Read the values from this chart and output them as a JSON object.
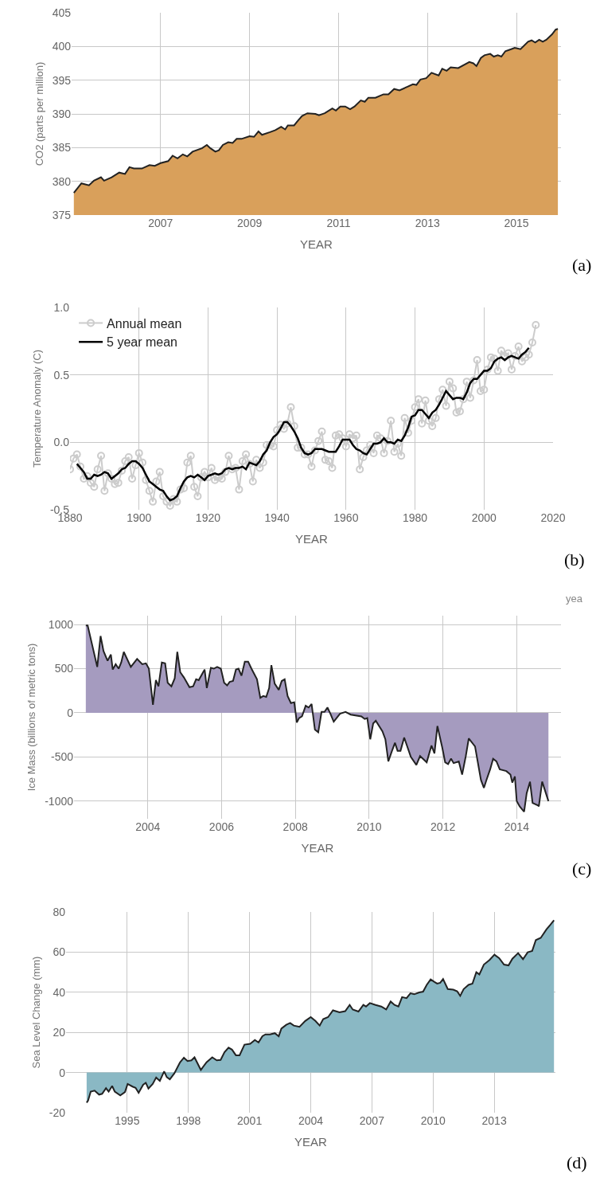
{
  "chart_data": [
    {
      "type": "area",
      "xlabel": "YEAR",
      "ylabel": "CO2 (parts per million)",
      "annotations": [
        "(a)"
      ],
      "xlim": [
        2005,
        2016
      ],
      "xticks": [
        2007,
        2009,
        2011,
        2013,
        2015
      ],
      "ylim": [
        375,
        405
      ],
      "yticks": [
        375,
        380,
        385,
        390,
        395,
        400,
        405
      ],
      "grid": true,
      "x": [
        2005.05,
        2005.22,
        2005.39,
        2005.5,
        2005.66,
        2005.73,
        2005.9,
        2006.07,
        2006.2,
        2006.3,
        2006.4,
        2006.58,
        2006.75,
        2006.87,
        2007.0,
        2007.17,
        2007.27,
        2007.38,
        2007.5,
        2007.6,
        2007.72,
        2007.93,
        2008.04,
        2008.12,
        2008.23,
        2008.31,
        2008.4,
        2008.52,
        2008.62,
        2008.71,
        2008.82,
        2009.0,
        2009.1,
        2009.2,
        2009.28,
        2009.46,
        2009.58,
        2009.71,
        2009.8,
        2009.86,
        2010.0,
        2010.1,
        2010.18,
        2010.3,
        2010.48,
        2010.56,
        2010.69,
        2010.86,
        2010.94,
        2011.04,
        2011.15,
        2011.26,
        2011.36,
        2011.5,
        2011.59,
        2011.67,
        2011.83,
        2012.01,
        2012.12,
        2012.25,
        2012.37,
        2012.54,
        2012.67,
        2012.75,
        2012.84,
        2012.97,
        2013.09,
        2013.25,
        2013.33,
        2013.43,
        2013.52,
        2013.69,
        2013.94,
        2014.03,
        2014.1,
        2014.2,
        2014.28,
        2014.41,
        2014.49,
        2014.58,
        2014.66,
        2014.75,
        2014.88,
        2014.96,
        2015.09,
        2015.26,
        2015.34,
        2015.42,
        2015.51,
        2015.59,
        2015.67,
        2015.8,
        2015.88,
        2015.93
      ],
      "series": [
        {
          "color": "#d9a05b",
          "values": [
            378.3,
            379.7,
            379.4,
            380.1,
            380.6,
            380.1,
            380.6,
            381.3,
            381.1,
            382.1,
            381.9,
            381.9,
            382.4,
            382.3,
            382.7,
            383.0,
            383.8,
            383.4,
            384.0,
            383.7,
            384.4,
            384.9,
            385.4,
            384.9,
            384.4,
            384.6,
            385.4,
            385.8,
            385.7,
            386.3,
            386.3,
            386.7,
            386.6,
            387.4,
            386.9,
            387.3,
            387.6,
            388.1,
            387.7,
            388.3,
            388.3,
            389.1,
            389.7,
            390.1,
            390.0,
            389.8,
            390.1,
            390.8,
            390.5,
            391.1,
            391.1,
            390.7,
            391.1,
            392.0,
            391.8,
            392.4,
            392.4,
            392.9,
            392.9,
            393.7,
            393.5,
            394.0,
            394.4,
            394.3,
            395.1,
            395.3,
            396.1,
            395.7,
            396.7,
            396.4,
            396.9,
            396.8,
            397.7,
            397.5,
            397.1,
            398.3,
            398.7,
            398.9,
            398.5,
            398.7,
            398.5,
            399.3,
            399.6,
            399.8,
            399.6,
            400.7,
            400.9,
            400.6,
            401.0,
            400.7,
            401.0,
            401.8,
            402.5,
            402.6
          ]
        }
      ]
    },
    {
      "type": "line",
      "xlabel": "YEAR",
      "ylabel": "Temperature Anomaly (C)",
      "annotations": [
        "(b)"
      ],
      "xlim": [
        1880,
        2020
      ],
      "xticks": [
        1880,
        1900,
        1920,
        1940,
        1960,
        1980,
        2000,
        2020
      ],
      "ylim": [
        -0.5,
        1.0
      ],
      "yticks": [
        {
          "value": -0.5,
          "label": "-0.5"
        },
        {
          "value": 0,
          "label": "0.0"
        },
        {
          "value": 0.5,
          "label": "0.5"
        },
        {
          "value": 1,
          "label": "1.0"
        }
      ],
      "grid": true,
      "legend": "top left",
      "series": [
        {
          "name": "Annual mean",
          "color": "#cccccc",
          "marker": "circle",
          "x": [
            1880,
            1881,
            1882,
            1883,
            1884,
            1885,
            1886,
            1887,
            1888,
            1889,
            1890,
            1891,
            1892,
            1893,
            1894,
            1895,
            1896,
            1897,
            1898,
            1899,
            1900,
            1901,
            1902,
            1903,
            1904,
            1905,
            1906,
            1907,
            1908,
            1909,
            1910,
            1911,
            1912,
            1913,
            1914,
            1915,
            1916,
            1917,
            1918,
            1919,
            1920,
            1921,
            1922,
            1923,
            1924,
            1925,
            1926,
            1927,
            1928,
            1929,
            1930,
            1931,
            1932,
            1933,
            1934,
            1935,
            1936,
            1937,
            1938,
            1939,
            1940,
            1941,
            1942,
            1943,
            1944,
            1945,
            1946,
            1947,
            1948,
            1949,
            1950,
            1951,
            1952,
            1953,
            1954,
            1955,
            1956,
            1957,
            1958,
            1959,
            1960,
            1961,
            1962,
            1963,
            1964,
            1965,
            1966,
            1967,
            1968,
            1969,
            1970,
            1971,
            1972,
            1973,
            1974,
            1975,
            1976,
            1977,
            1978,
            1979,
            1980,
            1981,
            1982,
            1983,
            1984,
            1985,
            1986,
            1987,
            1988,
            1989,
            1990,
            1991,
            1992,
            1993,
            1994,
            1995,
            1996,
            1997,
            1998,
            1999,
            2000,
            2001,
            2002,
            2003,
            2004,
            2005,
            2006,
            2007,
            2008,
            2009,
            2010,
            2011,
            2012,
            2013,
            2014,
            2015
          ],
          "values": [
            -0.2,
            -0.12,
            -0.09,
            -0.18,
            -0.27,
            -0.25,
            -0.3,
            -0.33,
            -0.2,
            -0.1,
            -0.36,
            -0.23,
            -0.27,
            -0.31,
            -0.3,
            -0.21,
            -0.14,
            -0.11,
            -0.27,
            -0.17,
            -0.08,
            -0.15,
            -0.28,
            -0.36,
            -0.44,
            -0.29,
            -0.22,
            -0.4,
            -0.44,
            -0.47,
            -0.42,
            -0.44,
            -0.35,
            -0.34,
            -0.15,
            -0.1,
            -0.33,
            -0.4,
            -0.26,
            -0.22,
            -0.26,
            -0.19,
            -0.28,
            -0.26,
            -0.27,
            -0.22,
            -0.1,
            -0.2,
            -0.19,
            -0.35,
            -0.14,
            -0.09,
            -0.16,
            -0.29,
            -0.13,
            -0.19,
            -0.15,
            -0.02,
            -0.02,
            -0.03,
            0.09,
            0.13,
            0.1,
            0.14,
            0.26,
            0.12,
            -0.04,
            -0.04,
            -0.09,
            -0.09,
            -0.18,
            -0.06,
            0.01,
            0.08,
            -0.13,
            -0.14,
            -0.19,
            0.05,
            0.06,
            0.03,
            -0.03,
            0.06,
            0.03,
            0.05,
            -0.2,
            -0.11,
            -0.06,
            -0.02,
            -0.08,
            0.05,
            0.03,
            -0.08,
            0.01,
            0.16,
            -0.07,
            -0.01,
            -0.1,
            0.18,
            0.07,
            0.16,
            0.26,
            0.32,
            0.14,
            0.31,
            0.16,
            0.12,
            0.18,
            0.32,
            0.39,
            0.27,
            0.45,
            0.4,
            0.22,
            0.23,
            0.32,
            0.45,
            0.33,
            0.46,
            0.61,
            0.38,
            0.39,
            0.54,
            0.63,
            0.62,
            0.53,
            0.68,
            0.64,
            0.66,
            0.54,
            0.64,
            0.71,
            0.6,
            0.63,
            0.65,
            0.74,
            0.87
          ]
        },
        {
          "name": "5 year mean",
          "color": "#000000",
          "marker": "none",
          "x": [
            1882,
            1883,
            1884,
            1885,
            1886,
            1887,
            1888,
            1889,
            1890,
            1891,
            1892,
            1893,
            1894,
            1895,
            1896,
            1897,
            1898,
            1899,
            1900,
            1901,
            1902,
            1903,
            1904,
            1905,
            1906,
            1907,
            1908,
            1909,
            1910,
            1911,
            1912,
            1913,
            1914,
            1915,
            1916,
            1917,
            1918,
            1919,
            1920,
            1921,
            1922,
            1923,
            1924,
            1925,
            1926,
            1927,
            1928,
            1929,
            1930,
            1931,
            1932,
            1933,
            1934,
            1935,
            1936,
            1937,
            1938,
            1939,
            1940,
            1941,
            1942,
            1943,
            1944,
            1945,
            1946,
            1947,
            1948,
            1949,
            1950,
            1951,
            1952,
            1953,
            1954,
            1955,
            1956,
            1957,
            1958,
            1959,
            1960,
            1961,
            1962,
            1963,
            1964,
            1965,
            1966,
            1967,
            1968,
            1969,
            1970,
            1971,
            1972,
            1973,
            1974,
            1975,
            1976,
            1977,
            1978,
            1979,
            1980,
            1981,
            1982,
            1983,
            1984,
            1985,
            1986,
            1987,
            1988,
            1989,
            1990,
            1991,
            1992,
            1993,
            1994,
            1995,
            1996,
            1997,
            1998,
            1999,
            2000,
            2001,
            2002,
            2003,
            2004,
            2005,
            2006,
            2007,
            2008,
            2009,
            2010,
            2011,
            2012,
            2013
          ],
          "values": [
            -0.16,
            -0.19,
            -0.22,
            -0.27,
            -0.27,
            -0.24,
            -0.25,
            -0.24,
            -0.22,
            -0.23,
            -0.27,
            -0.25,
            -0.23,
            -0.2,
            -0.19,
            -0.16,
            -0.14,
            -0.14,
            -0.16,
            -0.19,
            -0.24,
            -0.29,
            -0.31,
            -0.33,
            -0.35,
            -0.36,
            -0.4,
            -0.43,
            -0.42,
            -0.4,
            -0.34,
            -0.29,
            -0.26,
            -0.25,
            -0.26,
            -0.24,
            -0.26,
            -0.28,
            -0.25,
            -0.24,
            -0.23,
            -0.24,
            -0.23,
            -0.2,
            -0.19,
            -0.2,
            -0.19,
            -0.19,
            -0.18,
            -0.2,
            -0.15,
            -0.16,
            -0.17,
            -0.14,
            -0.09,
            -0.06,
            0.0,
            0.04,
            0.06,
            0.1,
            0.15,
            0.15,
            0.12,
            0.08,
            0.03,
            -0.04,
            -0.08,
            -0.09,
            -0.08,
            -0.05,
            -0.05,
            -0.05,
            -0.06,
            -0.07,
            -0.07,
            -0.07,
            -0.03,
            0.02,
            0.02,
            0.02,
            -0.02,
            -0.05,
            -0.06,
            -0.08,
            -0.09,
            -0.05,
            -0.01,
            -0.01,
            0.0,
            0.03,
            0.0,
            0.0,
            -0.01,
            0.02,
            0.01,
            0.05,
            0.11,
            0.19,
            0.2,
            0.24,
            0.24,
            0.21,
            0.18,
            0.22,
            0.24,
            0.28,
            0.33,
            0.38,
            0.35,
            0.32,
            0.33,
            0.33,
            0.32,
            0.37,
            0.44,
            0.47,
            0.47,
            0.5,
            0.53,
            0.53,
            0.55,
            0.6,
            0.62,
            0.63,
            0.61,
            0.63,
            0.64,
            0.63,
            0.62,
            0.65,
            0.67,
            0.7
          ]
        }
      ]
    },
    {
      "type": "area",
      "xlabel": "YEAR",
      "ylabel": "Ice Mass (billions of metric tons)",
      "annotations": [
        "yea",
        "(c)"
      ],
      "xlim": [
        2002,
        2015.2
      ],
      "xticks": [
        2004,
        2006,
        2008,
        2010,
        2012,
        2014
      ],
      "ylim": [
        -1200,
        1100
      ],
      "yticks": [
        -1000,
        -500,
        0,
        500,
        1000
      ],
      "grid": true,
      "x": [
        2002.32,
        2002.37,
        2002.63,
        2002.72,
        2002.8,
        2002.91,
        2003.0,
        2003.05,
        2003.13,
        2003.21,
        2003.28,
        2003.35,
        2003.54,
        2003.71,
        2003.85,
        2003.95,
        2004.03,
        2004.14,
        2004.22,
        2004.29,
        2004.38,
        2004.47,
        2004.54,
        2004.64,
        2004.73,
        2004.8,
        2004.88,
        2004.98,
        2005.13,
        2005.23,
        2005.31,
        2005.38,
        2005.54,
        2005.6,
        2005.71,
        2005.79,
        2005.88,
        2005.98,
        2006.07,
        2006.15,
        2006.22,
        2006.31,
        2006.39,
        2006.46,
        2006.54,
        2006.63,
        2006.72,
        2006.81,
        2006.96,
        2007.05,
        2007.13,
        2007.21,
        2007.29,
        2007.35,
        2007.44,
        2007.55,
        2007.63,
        2007.71,
        2007.79,
        2007.88,
        2007.97,
        2008.04,
        2008.1,
        2008.18,
        2008.28,
        2008.36,
        2008.44,
        2008.53,
        2008.62,
        2008.71,
        2008.79,
        2008.87,
        2008.95,
        2009.04,
        2009.21,
        2009.36,
        2009.5,
        2009.79,
        2009.88,
        2009.95,
        2010.03,
        2010.11,
        2010.18,
        2010.36,
        2010.44,
        2010.52,
        2010.62,
        2010.7,
        2010.77,
        2010.85,
        2010.95,
        2011.13,
        2011.28,
        2011.38,
        2011.56,
        2011.69,
        2011.77,
        2011.85,
        2011.98,
        2012.06,
        2012.14,
        2012.22,
        2012.29,
        2012.43,
        2012.52,
        2012.62,
        2012.7,
        2012.87,
        2013.03,
        2013.11,
        2013.18,
        2013.28,
        2013.36,
        2013.45,
        2013.54,
        2013.72,
        2013.83,
        2013.88,
        2013.95,
        2014.0,
        2014.08,
        2014.2,
        2014.27,
        2014.36,
        2014.43,
        2014.58,
        2014.6,
        2014.69,
        2014.86
      ],
      "series": [
        {
          "color": "#a59bbf",
          "values": [
            990,
            990,
            520,
            870,
            700,
            590,
            660,
            490,
            550,
            500,
            570,
            690,
            520,
            610,
            550,
            560,
            500,
            90,
            370,
            300,
            570,
            560,
            340,
            300,
            390,
            690,
            460,
            400,
            290,
            300,
            380,
            370,
            490,
            280,
            510,
            500,
            520,
            500,
            340,
            310,
            350,
            360,
            490,
            500,
            420,
            580,
            580,
            500,
            380,
            170,
            190,
            180,
            280,
            540,
            330,
            260,
            360,
            380,
            190,
            110,
            120,
            -110,
            -60,
            -40,
            80,
            60,
            100,
            -190,
            -220,
            10,
            10,
            60,
            -10,
            -100,
            -10,
            10,
            -20,
            -40,
            -70,
            -60,
            -300,
            -120,
            -90,
            -210,
            -300,
            -550,
            -430,
            -340,
            -430,
            -430,
            -280,
            -500,
            -590,
            -490,
            -560,
            -370,
            -460,
            -150,
            -390,
            -560,
            -580,
            -520,
            -570,
            -550,
            -700,
            -490,
            -290,
            -380,
            -760,
            -850,
            -760,
            -640,
            -520,
            -550,
            -640,
            -660,
            -700,
            -790,
            -720,
            -1000,
            -1060,
            -1120,
            -910,
            -780,
            -1020,
            -1050,
            -1060,
            -780,
            -1000
          ]
        }
      ]
    },
    {
      "type": "area",
      "xlabel": "YEAR",
      "ylabel": "Sea Level Change (mm)",
      "annotations": [
        "(d)"
      ],
      "xlim": [
        1992,
        2016
      ],
      "xticks": [
        1995,
        1998,
        2001,
        2004,
        2007,
        2010,
        2013
      ],
      "ylim": [
        -20,
        80
      ],
      "yticks": [
        -20,
        0,
        20,
        40,
        60,
        80
      ],
      "grid": true,
      "x": [
        1993.01,
        1993.08,
        1993.21,
        1993.4,
        1993.62,
        1993.77,
        1993.96,
        1994.09,
        1994.26,
        1994.39,
        1994.66,
        1994.89,
        1995.02,
        1995.26,
        1995.41,
        1995.56,
        1995.78,
        1995.91,
        1996.04,
        1996.25,
        1996.42,
        1996.6,
        1996.81,
        1996.94,
        1997.09,
        1997.31,
        1997.59,
        1997.78,
        1997.96,
        1998.15,
        1998.3,
        1998.61,
        1998.89,
        1999.17,
        1999.39,
        1999.58,
        1999.77,
        1999.97,
        2000.14,
        2000.33,
        2000.51,
        2000.75,
        2001.03,
        2001.26,
        2001.44,
        2001.63,
        2001.78,
        2002.0,
        2002.24,
        2002.43,
        2002.56,
        2002.8,
        2002.99,
        2003.17,
        2003.45,
        2003.73,
        2004.0,
        2004.23,
        2004.44,
        2004.61,
        2004.85,
        2005.09,
        2005.41,
        2005.69,
        2005.91,
        2006.06,
        2006.34,
        2006.58,
        2006.71,
        2006.9,
        2007.18,
        2007.46,
        2007.7,
        2007.92,
        2008.11,
        2008.3,
        2008.48,
        2008.7,
        2008.89,
        2009.08,
        2009.32,
        2009.51,
        2009.69,
        2009.88,
        2010.07,
        2010.2,
        2010.35,
        2010.49,
        2010.72,
        2010.99,
        2011.18,
        2011.33,
        2011.5,
        2011.74,
        2011.93,
        2012.12,
        2012.27,
        2012.49,
        2012.77,
        2013.01,
        2013.24,
        2013.48,
        2013.7,
        2013.89,
        2014.17,
        2014.41,
        2014.64,
        2014.86,
        2015.04,
        2015.28,
        2015.56,
        2015.75,
        2015.93
      ],
      "series": [
        {
          "color": "#8ab8c4",
          "values": [
            -15,
            -14,
            -9.5,
            -9,
            -11,
            -10.6,
            -7.8,
            -9.5,
            -6.7,
            -9.5,
            -11.4,
            -9.7,
            -5.7,
            -7,
            -7.6,
            -10.1,
            -6.1,
            -5.1,
            -8,
            -5.7,
            -2.5,
            -4.2,
            0.6,
            -2.3,
            -3.4,
            -0.4,
            5.1,
            7.4,
            5.7,
            6.1,
            7.6,
            1.3,
            5.1,
            7.6,
            6.1,
            6.3,
            10.1,
            12.4,
            11.4,
            8.6,
            8.6,
            13.9,
            14.3,
            16.2,
            15,
            18.1,
            19,
            19,
            19.6,
            18.1,
            21.9,
            23.8,
            24.7,
            23.4,
            22.8,
            25.7,
            27.6,
            25.7,
            23.4,
            26.6,
            27.6,
            31,
            30,
            30.6,
            33.7,
            31.4,
            30.4,
            33.7,
            32.9,
            34.6,
            33.7,
            32.9,
            31.4,
            35.4,
            33.7,
            32.9,
            37.6,
            37.1,
            39.5,
            39,
            39.9,
            40.3,
            43.7,
            46.4,
            45.1,
            44.3,
            44.7,
            46.6,
            41.6,
            41.3,
            40.5,
            38.2,
            41.6,
            43.7,
            44.3,
            50,
            48.9,
            53.8,
            56.1,
            58.7,
            57,
            53.8,
            53.4,
            56.7,
            59.5,
            56.5,
            59.9,
            60.6,
            66,
            67.1,
            71.3,
            73.6,
            75.9
          ]
        }
      ]
    }
  ]
}
